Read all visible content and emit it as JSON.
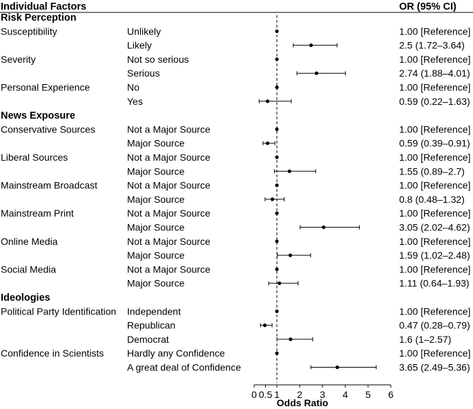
{
  "chart_data": {
    "type": "forest",
    "header": {
      "factor": "Individual Factors",
      "or": "OR (95% CI)"
    },
    "xlabel": "Odds Ratio",
    "x_ticks": [
      0,
      0.5,
      1,
      2,
      3,
      4,
      5,
      6
    ],
    "x_tick_labels": [
      "0",
      "0.5",
      "1",
      "2",
      "3",
      "4",
      "5",
      "6"
    ],
    "xlim": [
      0,
      6
    ],
    "reference_line": 1,
    "rows": [
      {
        "kind": "section",
        "label": "Risk Perception"
      },
      {
        "kind": "data",
        "factor": "Susceptibility",
        "level": "Unlikely",
        "or": 1,
        "lo": 1,
        "hi": 1,
        "text": "1.00 [Reference]"
      },
      {
        "kind": "data",
        "factor": "",
        "level": "Likely",
        "or": 2.5,
        "lo": 1.72,
        "hi": 3.64,
        "text": "2.5 (1.72–3.64)"
      },
      {
        "kind": "data",
        "factor": "Severity",
        "level": "Not so serious",
        "or": 1,
        "lo": 1,
        "hi": 1,
        "text": "1.00 [Reference]"
      },
      {
        "kind": "data",
        "factor": "",
        "level": "Serious",
        "or": 2.74,
        "lo": 1.88,
        "hi": 4.01,
        "text": "2.74 (1.88–4.01)"
      },
      {
        "kind": "data",
        "factor": "Personal Experience",
        "level": "No",
        "or": 1,
        "lo": 1,
        "hi": 1,
        "text": "1.00 [Reference]"
      },
      {
        "kind": "data",
        "factor": "",
        "level": "Yes",
        "or": 0.59,
        "lo": 0.22,
        "hi": 1.63,
        "text": "0.59 (0.22–1.63)"
      },
      {
        "kind": "section",
        "label": "News Exposure"
      },
      {
        "kind": "data",
        "factor": "Conservative Sources",
        "level": "Not a Major Source",
        "or": 1,
        "lo": 1,
        "hi": 1,
        "text": "1.00 [Reference]"
      },
      {
        "kind": "data",
        "factor": "",
        "level": "Major Source",
        "or": 0.59,
        "lo": 0.39,
        "hi": 0.91,
        "text": "0.59 (0.39–0.91)"
      },
      {
        "kind": "data",
        "factor": "Liberal Sources",
        "level": "Not a Major Source",
        "or": 1,
        "lo": 1,
        "hi": 1,
        "text": "1.00 [Reference]"
      },
      {
        "kind": "data",
        "factor": "",
        "level": "Major Source",
        "or": 1.55,
        "lo": 0.89,
        "hi": 2.7,
        "text": "1.55 (0.89–2.7)"
      },
      {
        "kind": "data",
        "factor": "Mainstream Broadcast",
        "level": "Not a Major Source",
        "or": 1,
        "lo": 1,
        "hi": 1,
        "text": "1.00 [Reference]"
      },
      {
        "kind": "data",
        "factor": "",
        "level": "Major Source",
        "or": 0.8,
        "lo": 0.48,
        "hi": 1.32,
        "text": "0.8 (0.48–1.32)"
      },
      {
        "kind": "data",
        "factor": "Mainstream Print",
        "level": "Not a Major Source",
        "or": 1,
        "lo": 1,
        "hi": 1,
        "text": "1.00 [Reference]"
      },
      {
        "kind": "data",
        "factor": "",
        "level": "Major Source",
        "or": 3.05,
        "lo": 2.02,
        "hi": 4.62,
        "text": "3.05 (2.02–4.62)"
      },
      {
        "kind": "data",
        "factor": "Online Media",
        "level": "Not a Major Source",
        "or": 1,
        "lo": 1,
        "hi": 1,
        "text": "1.00 [Reference]"
      },
      {
        "kind": "data",
        "factor": "",
        "level": "Major Source",
        "or": 1.59,
        "lo": 1.02,
        "hi": 2.48,
        "text": "1.59 (1.02–2.48)"
      },
      {
        "kind": "data",
        "factor": "Social Media",
        "level": "Not a Major Source",
        "or": 1,
        "lo": 1,
        "hi": 1,
        "text": "1.00 [Reference]"
      },
      {
        "kind": "data",
        "factor": "",
        "level": "Major Source",
        "or": 1.11,
        "lo": 0.64,
        "hi": 1.93,
        "text": "1.11 (0.64–1.93)"
      },
      {
        "kind": "section",
        "label": "Ideologies"
      },
      {
        "kind": "data",
        "factor": "Political Party Identification",
        "level": "Independent",
        "or": 1,
        "lo": 1,
        "hi": 1,
        "text": "1.00 [Reference]"
      },
      {
        "kind": "data",
        "factor": "",
        "level": "Republican",
        "or": 0.47,
        "lo": 0.28,
        "hi": 0.79,
        "text": "0.47 (0.28–0.79)"
      },
      {
        "kind": "data",
        "factor": "",
        "level": "Democrat",
        "or": 1.6,
        "lo": 1,
        "hi": 2.57,
        "text": "1.6 (1–2.57)"
      },
      {
        "kind": "data",
        "factor": "Confidence in Scientists",
        "level": "Hardly any Confidence",
        "or": 1,
        "lo": 1,
        "hi": 1,
        "text": "1.00 [Reference]"
      },
      {
        "kind": "data",
        "factor": "",
        "level": "A great deal of Confidence",
        "or": 3.65,
        "lo": 2.49,
        "hi": 5.36,
        "text": "3.65 (2.49–5.36)"
      }
    ]
  }
}
